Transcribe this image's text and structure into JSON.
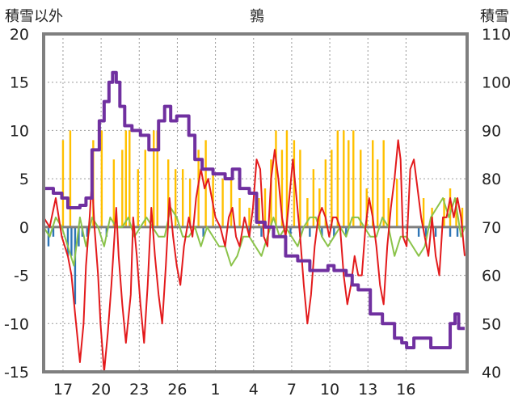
{
  "chart_data": {
    "type": "line",
    "title": "鶉",
    "left_axis_label": "積雪以外",
    "right_axis_label": "積雪",
    "left_axis": {
      "ylim": [
        -15,
        20
      ],
      "ticks": [
        "20",
        "15",
        "10",
        "5",
        "0",
        "-5",
        "-10",
        "-15"
      ]
    },
    "right_axis": {
      "ylim": [
        40,
        110
      ],
      "ticks": [
        "110",
        "100",
        "90",
        "80",
        "70",
        "60",
        "50",
        "40"
      ]
    },
    "x_ticks": [
      "17",
      "20",
      "23",
      "26",
      "1",
      "4",
      "7",
      "10",
      "13",
      "16"
    ],
    "grid": "dotted",
    "colors": {
      "temperature": "#e31a1c",
      "temperature_diff": "#8bc34a",
      "snowfall": "#ffc000",
      "snow_change": "#2e75b6",
      "snow_depth": "#7030a0",
      "zero_line": "#7f7f7f",
      "frame": "#7f7f7f"
    },
    "series": [
      {
        "key": "snow_depth",
        "axis": "right",
        "points": [
          [
            0,
            78
          ],
          [
            0.8,
            77
          ],
          [
            1.5,
            76
          ],
          [
            2.0,
            74
          ],
          [
            3.0,
            74.5
          ],
          [
            3.5,
            76
          ],
          [
            4.0,
            86
          ],
          [
            4.6,
            92
          ],
          [
            5.0,
            96
          ],
          [
            5.4,
            100
          ],
          [
            5.7,
            102
          ],
          [
            6.0,
            100
          ],
          [
            6.3,
            95
          ],
          [
            6.7,
            91
          ],
          [
            7.3,
            90
          ],
          [
            8.0,
            89
          ],
          [
            8.7,
            86
          ],
          [
            9.0,
            86
          ],
          [
            9.5,
            92
          ],
          [
            10.0,
            95
          ],
          [
            10.5,
            92
          ],
          [
            11.0,
            93
          ],
          [
            11.6,
            93
          ],
          [
            12.0,
            89
          ],
          [
            12.5,
            84
          ],
          [
            13.1,
            82
          ],
          [
            14.0,
            81
          ],
          [
            15.0,
            80
          ],
          [
            15.6,
            82
          ],
          [
            16.2,
            78
          ],
          [
            17.0,
            77
          ],
          [
            17.6,
            71
          ],
          [
            18.3,
            70
          ],
          [
            19.0,
            68
          ],
          [
            20.0,
            64
          ],
          [
            21.0,
            63
          ],
          [
            22.0,
            61
          ],
          [
            23.0,
            61
          ],
          [
            23.5,
            62
          ],
          [
            24.0,
            61
          ],
          [
            25.0,
            60
          ],
          [
            25.5,
            58
          ],
          [
            26.0,
            57
          ],
          [
            27.0,
            52
          ],
          [
            28.0,
            50
          ],
          [
            29.0,
            47
          ],
          [
            29.6,
            46
          ],
          [
            30.0,
            45
          ],
          [
            30.6,
            47
          ],
          [
            31.0,
            47
          ],
          [
            31.6,
            47
          ],
          [
            32.0,
            45
          ],
          [
            33.0,
            45
          ],
          [
            33.6,
            50
          ],
          [
            34.0,
            52
          ],
          [
            34.3,
            49
          ],
          [
            34.8,
            49
          ]
        ]
      },
      {
        "key": "temperature",
        "axis": "left",
        "points": [
          [
            0,
            1
          ],
          [
            0.5,
            0
          ],
          [
            1.0,
            3
          ],
          [
            1.5,
            -1
          ],
          [
            2.0,
            -3
          ],
          [
            2.3,
            -5
          ],
          [
            2.6,
            -9
          ],
          [
            3.0,
            -14
          ],
          [
            3.3,
            -10
          ],
          [
            3.5,
            -4
          ],
          [
            3.8,
            1
          ],
          [
            4.0,
            5
          ],
          [
            4.2,
            0
          ],
          [
            4.5,
            -5
          ],
          [
            4.7,
            -10
          ],
          [
            5.0,
            -15
          ],
          [
            5.3,
            -11
          ],
          [
            5.6,
            -6
          ],
          [
            6.0,
            2
          ],
          [
            6.2,
            -3
          ],
          [
            6.5,
            -8
          ],
          [
            6.8,
            -12
          ],
          [
            7.2,
            -7
          ],
          [
            7.4,
            1
          ],
          [
            7.7,
            -3
          ],
          [
            8.0,
            -8
          ],
          [
            8.3,
            -12
          ],
          [
            8.6,
            -6
          ],
          [
            8.9,
            2
          ],
          [
            9.2,
            -3
          ],
          [
            9.5,
            -7
          ],
          [
            9.8,
            -10
          ],
          [
            10.1,
            -4
          ],
          [
            10.4,
            3
          ],
          [
            10.7,
            -1
          ],
          [
            11.0,
            -4
          ],
          [
            11.3,
            -6
          ],
          [
            11.6,
            -2
          ],
          [
            12.0,
            1
          ],
          [
            12.3,
            -1
          ],
          [
            12.6,
            3
          ],
          [
            13.0,
            6
          ],
          [
            13.3,
            4
          ],
          [
            13.6,
            5
          ],
          [
            13.9,
            3
          ],
          [
            14.2,
            1
          ],
          [
            14.6,
            0
          ],
          [
            15.0,
            -2
          ],
          [
            15.3,
            1
          ],
          [
            15.6,
            2
          ],
          [
            15.9,
            -1
          ],
          [
            16.2,
            -2
          ],
          [
            16.6,
            1
          ],
          [
            17.0,
            -1
          ],
          [
            17.3,
            2
          ],
          [
            17.6,
            7
          ],
          [
            17.9,
            6
          ],
          [
            18.2,
            -1
          ],
          [
            18.5,
            -2
          ],
          [
            18.8,
            5
          ],
          [
            19.1,
            8
          ],
          [
            19.4,
            5
          ],
          [
            19.7,
            1
          ],
          [
            20.0,
            -1
          ],
          [
            20.3,
            3
          ],
          [
            20.6,
            7
          ],
          [
            20.9,
            3
          ],
          [
            21.2,
            -1
          ],
          [
            21.5,
            -6
          ],
          [
            21.8,
            -10
          ],
          [
            22.1,
            -7
          ],
          [
            22.4,
            -2
          ],
          [
            22.7,
            1
          ],
          [
            23.0,
            2
          ],
          [
            23.3,
            1
          ],
          [
            23.6,
            -1
          ],
          [
            23.9,
            1
          ],
          [
            24.2,
            1
          ],
          [
            24.5,
            0
          ],
          [
            24.8,
            -5
          ],
          [
            25.1,
            -8
          ],
          [
            25.4,
            -6
          ],
          [
            25.7,
            -3
          ],
          [
            26.0,
            -5
          ],
          [
            26.3,
            -5
          ],
          [
            26.6,
            0
          ],
          [
            26.9,
            3
          ],
          [
            27.2,
            1
          ],
          [
            27.5,
            -2
          ],
          [
            27.8,
            -6
          ],
          [
            28.1,
            -8
          ],
          [
            28.4,
            -2
          ],
          [
            28.7,
            2
          ],
          [
            29.0,
            5
          ],
          [
            29.3,
            9
          ],
          [
            29.5,
            7
          ],
          [
            29.7,
            -1
          ],
          [
            30.0,
            -2
          ],
          [
            30.3,
            6
          ],
          [
            30.6,
            7
          ],
          [
            30.9,
            4
          ],
          [
            31.2,
            1
          ],
          [
            31.5,
            -1
          ],
          [
            31.8,
            -3
          ],
          [
            32.1,
            1
          ],
          [
            32.4,
            -3
          ],
          [
            32.7,
            -5
          ],
          [
            33.0,
            1
          ],
          [
            33.3,
            1
          ],
          [
            33.6,
            3
          ],
          [
            33.9,
            1
          ],
          [
            34.2,
            3
          ],
          [
            34.5,
            1
          ],
          [
            34.8,
            -3
          ]
        ]
      },
      {
        "key": "temperature_diff",
        "axis": "left",
        "points": [
          [
            0,
            0
          ],
          [
            0.5,
            -1
          ],
          [
            1.0,
            1
          ],
          [
            1.5,
            0
          ],
          [
            2.0,
            -2
          ],
          [
            2.5,
            -4
          ],
          [
            3.0,
            1
          ],
          [
            3.5,
            -2
          ],
          [
            4.0,
            1
          ],
          [
            4.5,
            0
          ],
          [
            5.0,
            -2
          ],
          [
            5.5,
            1
          ],
          [
            6.0,
            0
          ],
          [
            6.5,
            0
          ],
          [
            7.0,
            1
          ],
          [
            7.5,
            -1
          ],
          [
            8.0,
            0
          ],
          [
            8.5,
            1
          ],
          [
            9.0,
            0
          ],
          [
            9.5,
            -1
          ],
          [
            10.0,
            -1
          ],
          [
            10.5,
            2
          ],
          [
            11.0,
            1
          ],
          [
            11.5,
            -1
          ],
          [
            12.0,
            -1
          ],
          [
            12.5,
            0
          ],
          [
            13.0,
            -2
          ],
          [
            13.5,
            0
          ],
          [
            14.0,
            -1
          ],
          [
            14.5,
            -2
          ],
          [
            15.0,
            -2
          ],
          [
            15.5,
            -4
          ],
          [
            16.0,
            -3
          ],
          [
            16.5,
            -1
          ],
          [
            17.0,
            -1
          ],
          [
            17.5,
            -2
          ],
          [
            18.0,
            -3
          ],
          [
            18.5,
            -1
          ],
          [
            19.0,
            1
          ],
          [
            19.5,
            -1
          ],
          [
            20.0,
            0
          ],
          [
            20.5,
            -1
          ],
          [
            21.0,
            -2
          ],
          [
            21.5,
            0
          ],
          [
            22.0,
            1
          ],
          [
            22.5,
            1
          ],
          [
            23.0,
            -1
          ],
          [
            23.5,
            -2
          ],
          [
            24.0,
            -1
          ],
          [
            24.5,
            0
          ],
          [
            25.0,
            -1
          ],
          [
            25.5,
            1
          ],
          [
            26.0,
            1
          ],
          [
            26.5,
            0
          ],
          [
            27.0,
            -1
          ],
          [
            27.5,
            -1
          ],
          [
            28.0,
            1
          ],
          [
            28.5,
            0
          ],
          [
            29.0,
            -3
          ],
          [
            29.5,
            -1
          ],
          [
            30.0,
            -1
          ],
          [
            30.5,
            -2
          ],
          [
            31.0,
            -3
          ],
          [
            31.5,
            -2
          ],
          [
            32.0,
            1
          ],
          [
            32.5,
            2
          ],
          [
            33.0,
            3
          ],
          [
            33.5,
            1
          ],
          [
            34.0,
            3
          ],
          [
            34.5,
            -1
          ],
          [
            34.8,
            0
          ]
        ]
      },
      {
        "key": "snowfall",
        "axis": "left",
        "bars": [
          [
            1.6,
            9
          ],
          [
            2.2,
            10
          ],
          [
            4.1,
            9
          ],
          [
            4.8,
            10
          ],
          [
            5.8,
            7
          ],
          [
            6.5,
            8
          ],
          [
            6.8,
            10
          ],
          [
            7.1,
            10
          ],
          [
            7.8,
            6
          ],
          [
            8.4,
            8
          ],
          [
            9.1,
            10
          ],
          [
            9.4,
            10
          ],
          [
            10.3,
            7
          ],
          [
            10.9,
            6
          ],
          [
            11.5,
            6
          ],
          [
            12.1,
            5
          ],
          [
            12.8,
            8
          ],
          [
            13.4,
            9
          ],
          [
            14.0,
            6
          ],
          [
            14.8,
            5
          ],
          [
            15.5,
            5
          ],
          [
            16.2,
            3
          ],
          [
            17.0,
            2
          ],
          [
            17.8,
            3
          ],
          [
            18.3,
            4
          ],
          [
            18.8,
            7
          ],
          [
            19.2,
            10
          ],
          [
            19.7,
            8
          ],
          [
            20.1,
            10
          ],
          [
            20.7,
            9
          ],
          [
            21.2,
            8
          ],
          [
            21.8,
            3
          ],
          [
            22.3,
            6
          ],
          [
            22.8,
            4
          ],
          [
            23.3,
            7
          ],
          [
            23.8,
            8
          ],
          [
            24.3,
            10
          ],
          [
            24.8,
            10
          ],
          [
            25.2,
            9
          ],
          [
            25.6,
            10
          ],
          [
            26.2,
            8
          ],
          [
            26.7,
            4
          ],
          [
            27.2,
            9
          ],
          [
            27.6,
            7
          ],
          [
            28.1,
            9
          ],
          [
            28.5,
            3
          ],
          [
            29.2,
            5
          ],
          [
            31.4,
            3
          ],
          [
            32.1,
            2
          ],
          [
            33.1,
            3
          ],
          [
            33.6,
            4
          ],
          [
            34.1,
            3
          ],
          [
            34.6,
            2
          ]
        ]
      },
      {
        "key": "snow_change",
        "axis": "left",
        "bars": [
          [
            0.4,
            -2
          ],
          [
            0.8,
            -1
          ],
          [
            2.0,
            -3
          ],
          [
            2.3,
            -3
          ],
          [
            2.6,
            -8
          ],
          [
            2.9,
            -2
          ],
          [
            3.2,
            -1
          ],
          [
            3.6,
            -1
          ],
          [
            5.2,
            -1
          ],
          [
            13.2,
            -1
          ],
          [
            17.0,
            -1
          ],
          [
            18.0,
            -1
          ],
          [
            20.4,
            -1
          ],
          [
            21.2,
            -1
          ],
          [
            22.0,
            -1
          ],
          [
            23.0,
            -1
          ],
          [
            24.0,
            -1
          ],
          [
            25.0,
            -1
          ],
          [
            31.0,
            -1
          ],
          [
            31.6,
            -1
          ],
          [
            32.4,
            -1
          ],
          [
            33.6,
            -1
          ],
          [
            34.2,
            -1
          ]
        ]
      }
    ]
  }
}
